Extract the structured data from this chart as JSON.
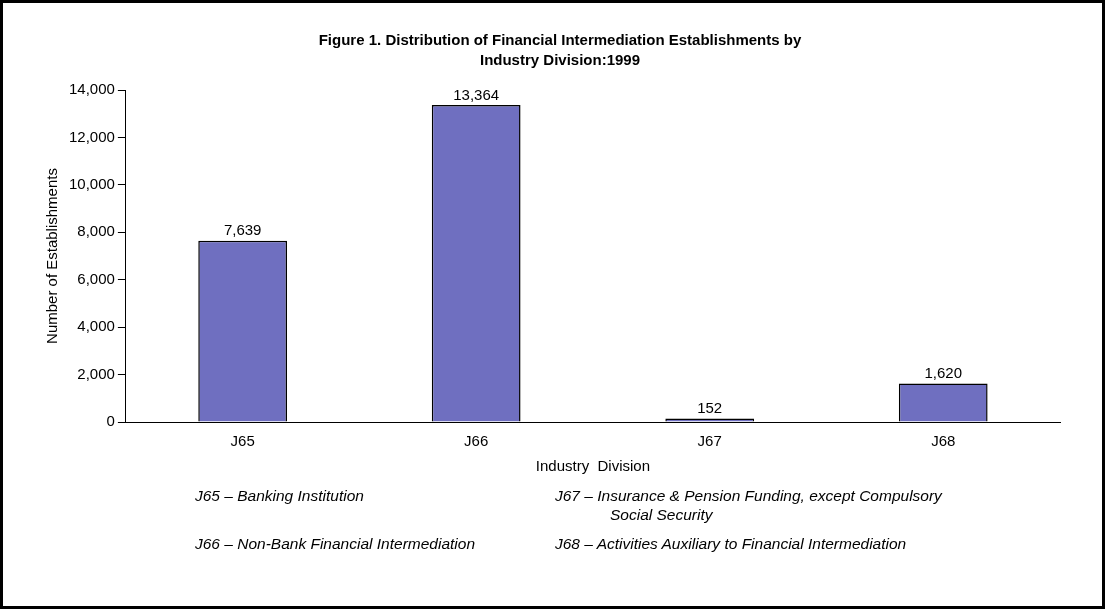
{
  "chart_data": {
    "type": "bar",
    "title": "Figure 1. Distribution of Financial Intermediation Establishments by Industry Division:1999",
    "xlabel": "Industry  Division",
    "ylabel": "Number of Establishments",
    "categories": [
      "J65",
      "J66",
      "J67",
      "J68"
    ],
    "values": [
      7639,
      13364,
      152,
      1620
    ],
    "color": "#6f6fc0",
    "value_labels": [
      "7,639",
      "13,364",
      "152",
      "1,620"
    ],
    "ylim": [
      0,
      14000
    ],
    "yticks": [
      0,
      {
        "value": 2000,
        "label": "2,000"
      },
      {
        "value": 4000,
        "label": "4,000"
      },
      {
        "value": 6000,
        "label": "6,000"
      },
      {
        "value": 8000,
        "label": "8,000"
      },
      {
        "value": 10000,
        "label": "10,000"
      },
      {
        "value": 12000,
        "label": "12,000"
      },
      {
        "value": 14000,
        "label": "14,000"
      }
    ],
    "grid": false,
    "legend": false,
    "annotations": [
      "J65 – Banking Institution",
      "J67 – Insurance & Pension Funding, except Compulsory Social Security",
      "J66 – Non-Bank Financial Intermediation",
      "J68 – Activities Auxiliary to Financial Intermediation"
    ]
  }
}
